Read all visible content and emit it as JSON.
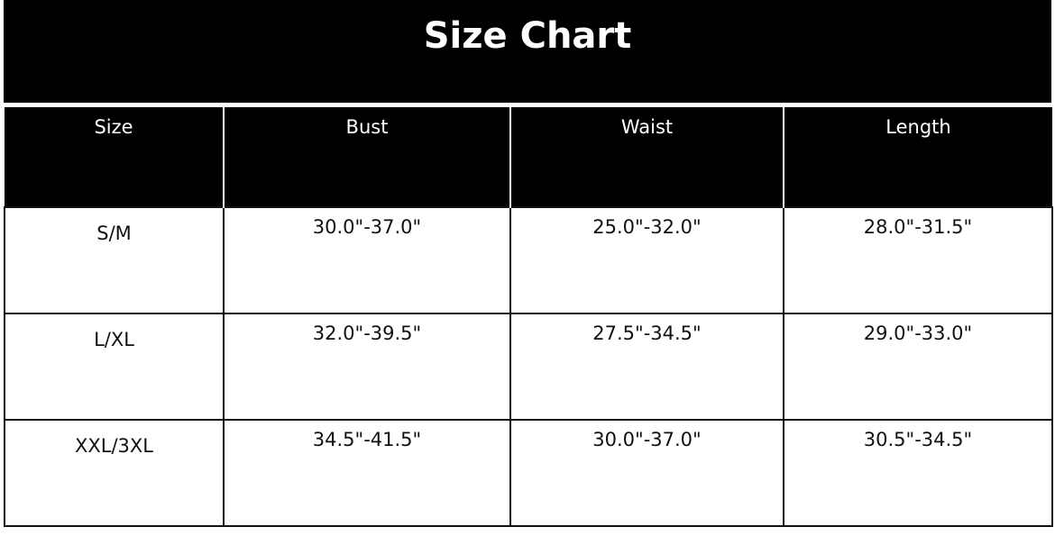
{
  "title": "Size Chart",
  "columns": [
    "Size",
    "Bust",
    "Waist",
    "Length"
  ],
  "rows": [
    [
      "S/M",
      "30.0\"-37.0\"",
      "25.0\"-32.0\"",
      "28.0\"-31.5\""
    ],
    [
      "L/XL",
      "32.0\"-39.5\"",
      "27.5\"-34.5\"",
      "29.0\"-33.0\""
    ],
    [
      "XXL/3XL",
      "34.5\"-41.5\"",
      "30.0\"-37.0\"",
      "30.5\"-34.5\""
    ]
  ]
}
